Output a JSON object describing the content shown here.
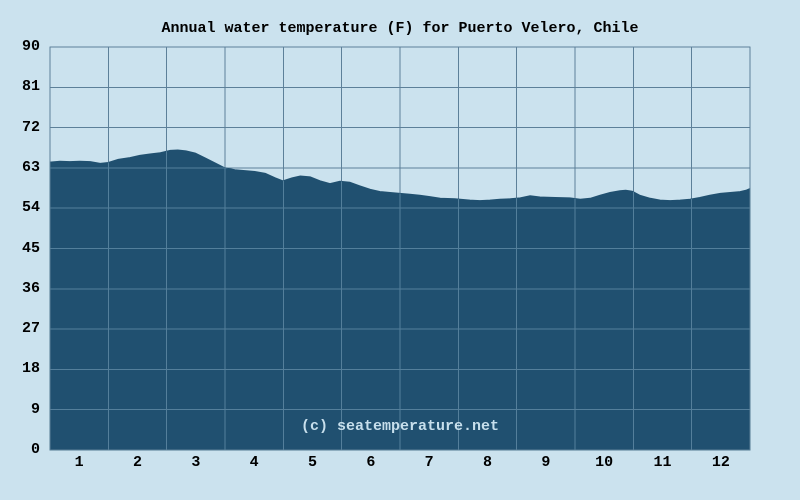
{
  "title": "Annual water temperature (F) for Puerto Velero, Chile",
  "watermark": "(c) seatemperature.net",
  "colors": {
    "background": "#cbe2ee",
    "area_fill": "#205070",
    "grid": "#5d8099",
    "grid_on_area": "#9cc0d6",
    "text": "#000000",
    "watermark_text": "#c7dfec"
  },
  "chart_data": {
    "type": "area",
    "title": "Annual water temperature (F) for Puerto Velero, Chile",
    "xlabel": "",
    "ylabel": "",
    "xlim": [
      0,
      12
    ],
    "ylim": [
      0,
      90
    ],
    "x_tick_labels": [
      "1",
      "2",
      "3",
      "4",
      "5",
      "6",
      "7",
      "8",
      "9",
      "10",
      "11",
      "12"
    ],
    "y_tick_labels": [
      "0",
      "9",
      "18",
      "27",
      "36",
      "45",
      "54",
      "63",
      "72",
      "81",
      "90"
    ],
    "y_ticks": [
      0,
      9,
      18,
      27,
      36,
      45,
      54,
      63,
      72,
      81,
      90
    ],
    "grid": true,
    "legend": "none",
    "series": [
      {
        "name": "Water temperature (F)",
        "points": [
          [
            0.0,
            64.3
          ],
          [
            0.17,
            64.5
          ],
          [
            0.34,
            64.4
          ],
          [
            0.51,
            64.5
          ],
          [
            0.69,
            64.4
          ],
          [
            0.86,
            64.0
          ],
          [
            1.0,
            64.2
          ],
          [
            1.17,
            64.9
          ],
          [
            1.37,
            65.3
          ],
          [
            1.54,
            65.8
          ],
          [
            1.71,
            66.1
          ],
          [
            1.89,
            66.4
          ],
          [
            2.06,
            66.9
          ],
          [
            2.19,
            67.0
          ],
          [
            2.33,
            66.8
          ],
          [
            2.49,
            66.3
          ],
          [
            2.66,
            65.2
          ],
          [
            2.83,
            64.1
          ],
          [
            3.0,
            63.0
          ],
          [
            3.17,
            62.6
          ],
          [
            3.34,
            62.4
          ],
          [
            3.51,
            62.2
          ],
          [
            3.69,
            61.8
          ],
          [
            3.86,
            60.8
          ],
          [
            3.99,
            60.1
          ],
          [
            4.15,
            60.8
          ],
          [
            4.29,
            61.2
          ],
          [
            4.46,
            61.0
          ],
          [
            4.63,
            60.1
          ],
          [
            4.8,
            59.5
          ],
          [
            4.97,
            60.0
          ],
          [
            5.14,
            59.8
          ],
          [
            5.31,
            59.0
          ],
          [
            5.49,
            58.2
          ],
          [
            5.66,
            57.7
          ],
          [
            5.83,
            57.5
          ],
          [
            6.0,
            57.3
          ],
          [
            6.17,
            57.1
          ],
          [
            6.34,
            56.9
          ],
          [
            6.51,
            56.6
          ],
          [
            6.69,
            56.2
          ],
          [
            6.94,
            56.1
          ],
          [
            7.2,
            55.8
          ],
          [
            7.37,
            55.7
          ],
          [
            7.54,
            55.8
          ],
          [
            7.71,
            56.0
          ],
          [
            7.89,
            56.1
          ],
          [
            8.06,
            56.3
          ],
          [
            8.23,
            56.8
          ],
          [
            8.4,
            56.5
          ],
          [
            8.66,
            56.4
          ],
          [
            8.91,
            56.3
          ],
          [
            9.09,
            56.0
          ],
          [
            9.26,
            56.2
          ],
          [
            9.43,
            56.9
          ],
          [
            9.6,
            57.5
          ],
          [
            9.77,
            57.9
          ],
          [
            9.87,
            58.0
          ],
          [
            9.98,
            57.8
          ],
          [
            10.11,
            56.9
          ],
          [
            10.29,
            56.2
          ],
          [
            10.46,
            55.8
          ],
          [
            10.63,
            55.7
          ],
          [
            10.8,
            55.8
          ],
          [
            10.97,
            56.0
          ],
          [
            11.14,
            56.4
          ],
          [
            11.31,
            56.9
          ],
          [
            11.49,
            57.3
          ],
          [
            11.66,
            57.5
          ],
          [
            11.83,
            57.7
          ],
          [
            11.93,
            58.0
          ],
          [
            12.0,
            58.4
          ]
        ]
      }
    ],
    "monthly_average_f": [
      64.4,
      65.8,
      65.3,
      61.7,
      60.3,
      58.3,
      56.7,
      55.9,
      56.4,
      57.3,
      56.0,
      57.4
    ]
  }
}
